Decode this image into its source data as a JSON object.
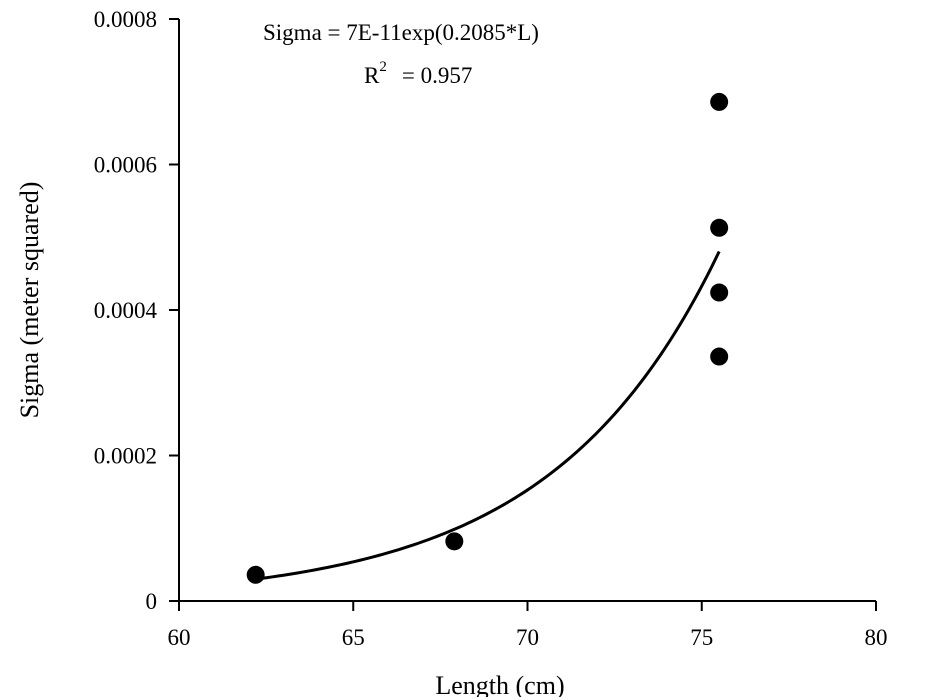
{
  "chart_data": {
    "type": "scatter",
    "title": "",
    "xlabel": "Length (cm)",
    "ylabel": "Sigma (meter squared)",
    "xlim": [
      60,
      80
    ],
    "ylim": [
      0,
      0.0008
    ],
    "x_ticks": [
      60,
      65,
      70,
      75,
      80
    ],
    "x_tick_labels": [
      "60",
      "65",
      "70",
      "75",
      "80"
    ],
    "y_ticks": [
      0,
      0.0002,
      0.0004,
      0.0006,
      0.0008
    ],
    "y_tick_labels": [
      "0",
      "0.0002",
      "0.0004",
      "0.0006",
      "0.0008"
    ],
    "grid": false,
    "points": [
      {
        "x": 62.2,
        "y": 3.6e-05
      },
      {
        "x": 67.9,
        "y": 8.2e-05
      },
      {
        "x": 75.5,
        "y": 0.000686
      },
      {
        "x": 75.5,
        "y": 0.000513
      },
      {
        "x": 75.5,
        "y": 0.000424
      },
      {
        "x": 75.5,
        "y": 0.000336
      }
    ],
    "fit": {
      "type": "exponential",
      "a": 7e-11,
      "b": 0.2085,
      "x_range": [
        62.2,
        75.5
      ]
    },
    "annotations": {
      "equation": "Sigma = 7E-11exp(0.2085*L)",
      "r2_prefix": "R",
      "r2_sup": "2",
      "r2_value": "= 0.957"
    }
  }
}
